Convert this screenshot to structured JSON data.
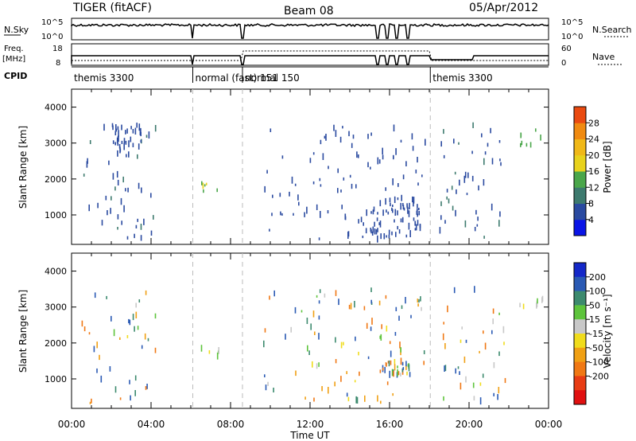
{
  "header": {
    "title": "TIGER (fitACF)",
    "beam": "Beam 08",
    "date": "05/Apr/2012"
  },
  "status_panels": {
    "nsky_label": "N.Sky",
    "nsky_ticks": [
      "10^5",
      "10^0"
    ],
    "nsearch_label": "N.Search",
    "nsearch_ticks": [
      "10^5",
      "10^0"
    ],
    "freq_label": "Freq.",
    "freq_unit": "[MHz]",
    "freq_ticks": [
      "18",
      "8"
    ],
    "nave_label": "Nave",
    "nave_ticks": [
      "60",
      "0"
    ],
    "cpid_label": "CPID",
    "cpid_segments": [
      {
        "label": "themis 3300",
        "start_hour": 0.0,
        "end_hour": 6.1
      },
      {
        "label": "normal (fast) 151",
        "start_hour": 6.1,
        "end_hour": 8.6
      },
      {
        "label": "normal 150",
        "start_hour": 8.6,
        "end_hour": 18.05
      },
      {
        "label": "themis 3300",
        "start_hour": 18.05,
        "end_hour": 24.0
      }
    ],
    "search_gaps_hours": [
      6.05,
      6.15,
      8.55,
      8.65,
      15.3,
      15.45,
      15.8,
      15.95,
      16.3,
      16.45,
      16.85,
      17.0
    ],
    "freq_low_segment_hours": [
      18.05,
      20.2
    ]
  },
  "axes": {
    "x_ticks": [
      "00:00",
      "04:00",
      "08:00",
      "12:00",
      "16:00",
      "20:00",
      "00:00"
    ],
    "x_label": "Time UT",
    "y_label": "Slant Range [km]",
    "y_ticks": [
      "1000",
      "2000",
      "3000",
      "4000"
    ]
  },
  "colorbars": {
    "power_label": "Power [dB]",
    "power_ticks": [
      "4",
      "8",
      "12",
      "16",
      "20",
      "24",
      "28"
    ],
    "power_colors": [
      "#0a14e6",
      "#2a4aa0",
      "#3d7a6e",
      "#4aa64a",
      "#e8d21c",
      "#f0b818",
      "#f08a10",
      "#ea4a10",
      "#e01010"
    ],
    "velocity_label": "Velocity [m s⁻¹]",
    "velocity_ticks": [
      "200",
      "100",
      "50",
      "15",
      "-15",
      "-50",
      "-100",
      "-200"
    ],
    "velocity_colors": [
      "#1428c8",
      "#2a5ab4",
      "#3c8a6e",
      "#5ec43c",
      "#c8c8c8",
      "#f0dc1c",
      "#f0a014",
      "#f07814",
      "#e83c14",
      "#e01010"
    ]
  },
  "chart_data": [
    {
      "type": "heatmap",
      "name": "power",
      "x_range_hours": [
        0,
        24
      ],
      "y_range_km": [
        180,
        4500
      ],
      "value_label": "Power [dB]",
      "clusters": [
        {
          "t": [
            0.5,
            4.2
          ],
          "r": [
            300,
            3500
          ],
          "density": 0.45,
          "value": [
            4,
            10
          ]
        },
        {
          "t": [
            2.0,
            3.5
          ],
          "r": [
            2800,
            3500
          ],
          "density": 0.7,
          "value": [
            4,
            8
          ]
        },
        {
          "t": [
            6.5,
            7.5
          ],
          "r": [
            1600,
            1900
          ],
          "density": 0.2,
          "value": [
            12,
            18
          ]
        },
        {
          "t": [
            9.5,
            12.0
          ],
          "r": [
            300,
            3500
          ],
          "density": 0.25,
          "value": [
            4,
            8
          ]
        },
        {
          "t": [
            12.0,
            17.8
          ],
          "r": [
            300,
            3500
          ],
          "density": 0.5,
          "value": [
            4,
            8
          ]
        },
        {
          "t": [
            15.0,
            17.5
          ],
          "r": [
            300,
            1500
          ],
          "density": 0.65,
          "value": [
            4,
            8
          ]
        },
        {
          "t": [
            18.5,
            21.8
          ],
          "r": [
            300,
            3500
          ],
          "density": 0.45,
          "value": [
            4,
            10
          ]
        },
        {
          "t": [
            22.5,
            23.8
          ],
          "r": [
            2900,
            3400
          ],
          "density": 0.2,
          "value": [
            12,
            16
          ]
        }
      ]
    },
    {
      "type": "heatmap",
      "name": "velocity",
      "x_range_hours": [
        0,
        24
      ],
      "y_range_km": [
        180,
        4500
      ],
      "value_label": "Velocity [m s⁻¹]",
      "clusters": [
        {
          "t": [
            0.5,
            4.2
          ],
          "r": [
            300,
            3500
          ],
          "density": 0.35,
          "value": [
            -200,
            200
          ]
        },
        {
          "t": [
            6.5,
            7.5
          ],
          "r": [
            1600,
            1900
          ],
          "density": 0.15,
          "value": [
            -50,
            50
          ]
        },
        {
          "t": [
            9.5,
            12.0
          ],
          "r": [
            300,
            3500
          ],
          "density": 0.22,
          "value": [
            -200,
            200
          ]
        },
        {
          "t": [
            12.0,
            17.8
          ],
          "r": [
            300,
            3500
          ],
          "density": 0.42,
          "value": [
            -200,
            200
          ]
        },
        {
          "t": [
            15.5,
            17.0
          ],
          "r": [
            1100,
            1500
          ],
          "density": 0.7,
          "value": [
            -200,
            200
          ]
        },
        {
          "t": [
            18.5,
            21.8
          ],
          "r": [
            300,
            3500
          ],
          "density": 0.38,
          "value": [
            -200,
            200
          ]
        },
        {
          "t": [
            22.5,
            23.8
          ],
          "r": [
            2900,
            3400
          ],
          "density": 0.18,
          "value": [
            -50,
            50
          ]
        }
      ]
    }
  ]
}
